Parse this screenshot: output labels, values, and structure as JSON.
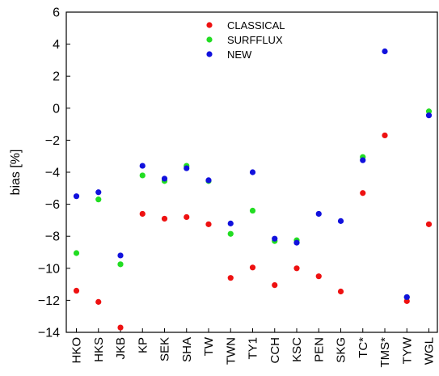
{
  "chart_data": {
    "type": "scatter",
    "title": "",
    "xlabel": "",
    "ylabel": "bias [%]",
    "ylim": [
      -14,
      6
    ],
    "yticks": [
      -14,
      -12,
      -10,
      -8,
      -6,
      -4,
      -2,
      0,
      2,
      4,
      6
    ],
    "ytick_labels": [
      "−14",
      "−12",
      "−10",
      "−8",
      "−6",
      "−4",
      "−2",
      "0",
      "2",
      "4",
      "6"
    ],
    "grid": false,
    "legend_position": "top-center",
    "categories": [
      "HKO",
      "HKS",
      "JKB",
      "KP",
      "SEK",
      "SHA",
      "TW",
      "TWN",
      "TY1",
      "CCH",
      "KSC",
      "PEN",
      "SKG",
      "TC*",
      "TMS*",
      "TYW",
      "WGL"
    ],
    "series": [
      {
        "name": "CLASSICAL",
        "color": "#ee1111",
        "values": [
          -11.4,
          -12.1,
          -13.7,
          -6.6,
          -6.9,
          -6.8,
          -7.25,
          -10.6,
          -9.95,
          -11.05,
          -10.0,
          -10.5,
          -11.45,
          -5.3,
          -1.7,
          -12.05,
          -7.25
        ]
      },
      {
        "name": "SURFFLUX",
        "color": "#22dd22",
        "values": [
          -9.05,
          -5.7,
          -9.75,
          -4.2,
          -4.55,
          -3.6,
          -4.55,
          -7.85,
          -6.4,
          -8.3,
          -8.25,
          null,
          null,
          -3.05,
          null,
          -11.8,
          -0.2
        ]
      },
      {
        "name": "NEW",
        "color": "#1111dd",
        "values": [
          -5.5,
          -5.25,
          -9.2,
          -3.6,
          -4.4,
          -3.75,
          -4.5,
          -7.2,
          -4.0,
          -8.15,
          -8.4,
          -6.6,
          -7.05,
          -3.25,
          3.55,
          -11.8,
          -0.45
        ]
      }
    ]
  }
}
